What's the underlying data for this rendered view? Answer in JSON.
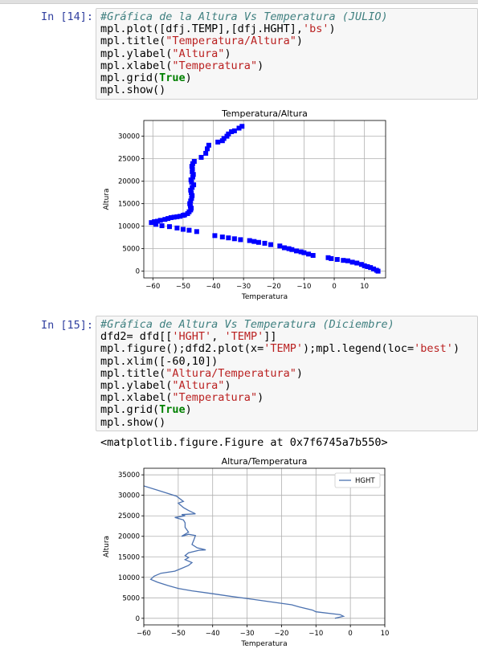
{
  "cells": [
    {
      "prompt": "In [14]:",
      "code_lines": [
        [
          {
            "t": "#Gráfica de la Altura Vs Temperatura (JULIO)",
            "c": "cm"
          }
        ],
        [
          {
            "t": "mpl.plot([dfj.TEMP],[dfj.HGHT],",
            "c": ""
          },
          {
            "t": "'bs'",
            "c": "st"
          },
          {
            "t": ")",
            "c": ""
          }
        ],
        [
          {
            "t": "mpl.title(",
            "c": ""
          },
          {
            "t": "\"Temperatura/Altura\"",
            "c": "st"
          },
          {
            "t": ")",
            "c": ""
          }
        ],
        [
          {
            "t": "mpl.ylabel(",
            "c": ""
          },
          {
            "t": "\"Altura\"",
            "c": "st"
          },
          {
            "t": ")",
            "c": ""
          }
        ],
        [
          {
            "t": "mpl.xlabel(",
            "c": ""
          },
          {
            "t": "\"Temperatura\"",
            "c": "st"
          },
          {
            "t": ")",
            "c": ""
          }
        ],
        [
          {
            "t": "mpl.grid(",
            "c": ""
          },
          {
            "t": "True",
            "c": "kw"
          },
          {
            "t": ")",
            "c": ""
          }
        ],
        [
          {
            "t": "mpl.show()",
            "c": ""
          }
        ]
      ]
    },
    {
      "prompt": "In [15]:",
      "code_lines": [
        [
          {
            "t": "#Gráfica de Altura Vs Temperatura (Diciembre)",
            "c": "cm"
          }
        ],
        [
          {
            "t": "dfd2= dfd[[",
            "c": ""
          },
          {
            "t": "'HGHT'",
            "c": "st"
          },
          {
            "t": ", ",
            "c": ""
          },
          {
            "t": "'TEMP'",
            "c": "st"
          },
          {
            "t": "]]",
            "c": ""
          }
        ],
        [
          {
            "t": "mpl.figure();dfd2.plot(x=",
            "c": ""
          },
          {
            "t": "'TEMP'",
            "c": "st"
          },
          {
            "t": ");mpl.legend(loc=",
            "c": ""
          },
          {
            "t": "'best'",
            "c": "st"
          },
          {
            "t": ")",
            "c": ""
          }
        ],
        [
          {
            "t": "mpl.xlim([-60,10])",
            "c": ""
          }
        ],
        [
          {
            "t": "mpl.title(",
            "c": ""
          },
          {
            "t": "\"Altura/Temperatura\"",
            "c": "st"
          },
          {
            "t": ")",
            "c": ""
          }
        ],
        [
          {
            "t": "mpl.ylabel(",
            "c": ""
          },
          {
            "t": "\"Altura\"",
            "c": "st"
          },
          {
            "t": ")",
            "c": ""
          }
        ],
        [
          {
            "t": "mpl.xlabel(",
            "c": ""
          },
          {
            "t": "\"Temperatura\"",
            "c": "st"
          },
          {
            "t": ")",
            "c": ""
          }
        ],
        [
          {
            "t": "mpl.grid(",
            "c": ""
          },
          {
            "t": "True",
            "c": "kw"
          },
          {
            "t": ")",
            "c": ""
          }
        ],
        [
          {
            "t": "mpl.show()",
            "c": ""
          }
        ]
      ],
      "output_text": "<matplotlib.figure.Figure at 0x7f6745a7b550>"
    }
  ],
  "chart_data": [
    {
      "type": "scatter",
      "title": "Temperatura/Altura",
      "xlabel": "Temperatura",
      "ylabel": "Altura",
      "xlim": [
        -63,
        17
      ],
      "ylim": [
        -1500,
        33500
      ],
      "xticks": [
        -60,
        -50,
        -40,
        -30,
        -20,
        -10,
        0,
        10
      ],
      "yticks": [
        0,
        5000,
        10000,
        15000,
        20000,
        25000,
        30000
      ],
      "grid": true,
      "marker": "square",
      "color": "#0000ff",
      "points": [
        [
          -60.5,
          10800
        ],
        [
          -59.5,
          11000
        ],
        [
          -58.5,
          11100
        ],
        [
          -57.5,
          11300
        ],
        [
          -56,
          11500
        ],
        [
          -55,
          11700
        ],
        [
          -54,
          11900
        ],
        [
          -53,
          12000
        ],
        [
          -52,
          12100
        ],
        [
          -51,
          12200
        ],
        [
          -50,
          12400
        ],
        [
          -49.5,
          12500
        ],
        [
          -48.5,
          12800
        ],
        [
          -48,
          13200
        ],
        [
          -47.5,
          13600
        ],
        [
          -47.3,
          14000
        ],
        [
          -47.6,
          14500
        ],
        [
          -47.8,
          15000
        ],
        [
          -47.5,
          15600
        ],
        [
          -47.2,
          16200
        ],
        [
          -47,
          16800
        ],
        [
          -47.3,
          17400
        ],
        [
          -47.5,
          18000
        ],
        [
          -47,
          18600
        ],
        [
          -46.5,
          19200
        ],
        [
          -47.2,
          19800
        ],
        [
          -47.4,
          20300
        ],
        [
          -46.8,
          20900
        ],
        [
          -46.6,
          21500
        ],
        [
          -47,
          22100
        ],
        [
          -46.9,
          22700
        ],
        [
          -47.1,
          23300
        ],
        [
          -46.8,
          23900
        ],
        [
          -46.3,
          24400
        ],
        [
          -44,
          25300
        ],
        [
          -42.5,
          26200
        ],
        [
          -42,
          27200
        ],
        [
          -41.5,
          28000
        ],
        [
          -38.5,
          28700
        ],
        [
          -37,
          29000
        ],
        [
          -36.5,
          29500
        ],
        [
          -35.5,
          30000
        ],
        [
          -35,
          30500
        ],
        [
          -34,
          31000
        ],
        [
          -33,
          31200
        ],
        [
          -31.5,
          31800
        ],
        [
          -30.5,
          32200
        ],
        [
          -59,
          10400
        ],
        [
          -57,
          10100
        ],
        [
          -54.5,
          9900
        ],
        [
          -52,
          9600
        ],
        [
          -50,
          9300
        ],
        [
          -48,
          9100
        ],
        [
          -45.5,
          8800
        ],
        [
          -39.5,
          7900
        ],
        [
          -37,
          7600
        ],
        [
          -35,
          7400
        ],
        [
          -33,
          7200
        ],
        [
          -31,
          7000
        ],
        [
          -28,
          6800
        ],
        [
          -26.5,
          6600
        ],
        [
          -25,
          6400
        ],
        [
          -23,
          6200
        ],
        [
          -21,
          5900
        ],
        [
          -18,
          5600
        ],
        [
          -16.5,
          5200
        ],
        [
          -15,
          5000
        ],
        [
          -14,
          4800
        ],
        [
          -12.5,
          4500
        ],
        [
          -11,
          4300
        ],
        [
          -10,
          4100
        ],
        [
          -8.5,
          3800
        ],
        [
          -7,
          3500
        ],
        [
          -2,
          3000
        ],
        [
          -1,
          2800
        ],
        [
          1,
          2600
        ],
        [
          3,
          2400
        ],
        [
          4.5,
          2300
        ],
        [
          6,
          2000
        ],
        [
          7.5,
          1800
        ],
        [
          9,
          1500
        ],
        [
          10,
          1200
        ],
        [
          11,
          1000
        ],
        [
          12,
          800
        ],
        [
          13,
          500
        ],
        [
          14,
          200
        ],
        [
          14.5,
          0
        ]
      ]
    },
    {
      "type": "line",
      "title": "Altura/Temperatura",
      "xlabel": "Temperatura",
      "ylabel": "Altura",
      "xlim": [
        -60,
        10
      ],
      "ylim": [
        -1600,
        36600
      ],
      "xticks": [
        -60,
        -50,
        -40,
        -30,
        -20,
        -10,
        0,
        10
      ],
      "yticks": [
        0,
        5000,
        10000,
        15000,
        20000,
        25000,
        30000,
        35000
      ],
      "grid": true,
      "color": "#4c72b0",
      "legend": {
        "placement": "top-right",
        "entries": [
          "HGHT"
        ]
      },
      "series": [
        {
          "name": "HGHT",
          "points": [
            [
              -4.5,
              0
            ],
            [
              -2,
              500
            ],
            [
              -3,
              900
            ],
            [
              -10,
              1600
            ],
            [
              -11,
              2000
            ],
            [
              -15,
              2800
            ],
            [
              -17,
              3300
            ],
            [
              -28,
              4600
            ],
            [
              -35,
              5400
            ],
            [
              -40,
              6000
            ],
            [
              -46,
              6700
            ],
            [
              -50,
              7300
            ],
            [
              -53,
              8000
            ],
            [
              -56,
              8800
            ],
            [
              -58,
              9500
            ],
            [
              -57,
              10300
            ],
            [
              -55,
              11000
            ],
            [
              -51,
              11500
            ],
            [
              -49,
              12200
            ],
            [
              -47,
              12900
            ],
            [
              -46,
              13600
            ],
            [
              -48,
              14300
            ],
            [
              -47,
              14800
            ],
            [
              -48,
              15300
            ],
            [
              -47,
              16000
            ],
            [
              -44,
              16600
            ],
            [
              -42,
              16700
            ],
            [
              -44.5,
              17200
            ],
            [
              -46,
              18000
            ],
            [
              -45.5,
              19000
            ],
            [
              -45,
              20200
            ],
            [
              -47,
              20500
            ],
            [
              -49,
              20000
            ],
            [
              -47,
              21000
            ],
            [
              -48,
              22200
            ],
            [
              -48,
              23300
            ],
            [
              -48.5,
              24000
            ],
            [
              -51,
              24600
            ],
            [
              -48,
              25000
            ],
            [
              -49,
              25300
            ],
            [
              -45,
              25500
            ],
            [
              -47,
              26300
            ],
            [
              -48.5,
              27000
            ],
            [
              -50,
              28100
            ],
            [
              -48.5,
              28500
            ],
            [
              -50.5,
              29800
            ],
            [
              -55,
              31000
            ],
            [
              -60,
              32300
            ]
          ]
        }
      ]
    }
  ]
}
